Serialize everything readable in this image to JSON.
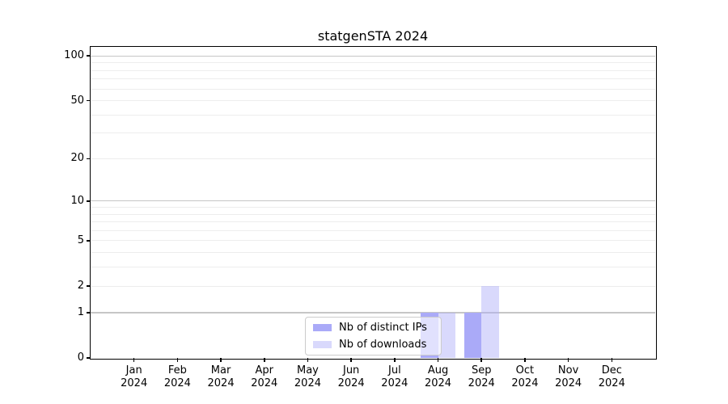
{
  "title": "statgenSTA 2024",
  "chart_data": {
    "type": "bar",
    "title": "statgenSTA 2024",
    "x_year": "2024",
    "categories": [
      "Jan",
      "Feb",
      "Mar",
      "Apr",
      "May",
      "Jun",
      "Jul",
      "Aug",
      "Sep",
      "Oct",
      "Nov",
      "Dec"
    ],
    "series": [
      {
        "name": "Nb of distinct IPs",
        "color": "#aaaaf8",
        "values": [
          0,
          0,
          0,
          0,
          0,
          0,
          0,
          1,
          1,
          0,
          0,
          0
        ]
      },
      {
        "name": "Nb of downloads",
        "color": "rgba(170,170,248,0.45)",
        "values": [
          0,
          0,
          0,
          0,
          0,
          0,
          0,
          1,
          2,
          0,
          0,
          0
        ]
      }
    ],
    "y_scale": "log1p",
    "y_max": 115,
    "y_ticks": [
      0,
      1,
      2,
      5,
      10,
      20,
      50,
      100
    ],
    "y_major_gridlines": [
      1,
      10,
      100
    ],
    "y_minor_gridlines": [
      2,
      3,
      4,
      5,
      6,
      7,
      8,
      9,
      20,
      30,
      40,
      50,
      60,
      70,
      80,
      90
    ],
    "grid": true,
    "legend_position": "inside-bottom-center",
    "axis_color": "#000000",
    "grid_major_color": "#c6c6c6",
    "grid_minor_color": "#ededed",
    "bar_width_fraction": 0.4
  }
}
